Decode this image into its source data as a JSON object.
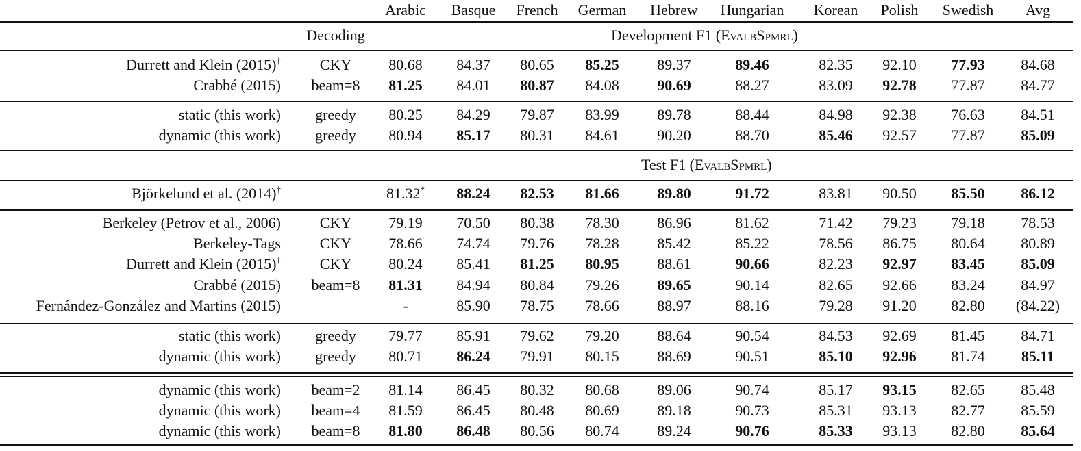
{
  "table": {
    "columns": [
      "Arabic",
      "Basque",
      "French",
      "German",
      "Hebrew",
      "Hungarian",
      "Korean",
      "Polish",
      "Swedish",
      "Avg"
    ],
    "decoding_header": "Decoding",
    "sections": {
      "dev_title": "Development F1 (",
      "dev_metric": "EvalbSpmrl",
      "dev_close": ")",
      "test_title": "Test F1 (",
      "test_metric": "EvalbSpmrl",
      "test_close": ")"
    },
    "dev_rows": [
      {
        "system": "Durrett and Klein (2015)",
        "mark": "†",
        "decoding": "CKY",
        "values": [
          "80.68",
          "84.37",
          "80.65",
          "85.25",
          "89.37",
          "89.46",
          "82.35",
          "92.10",
          "77.93",
          "84.68"
        ],
        "bold": [
          false,
          false,
          false,
          true,
          false,
          true,
          false,
          false,
          true,
          false
        ]
      },
      {
        "system": "Crabbé (2015)",
        "mark": "",
        "decoding": "beam=8",
        "values": [
          "81.25",
          "84.01",
          "80.87",
          "84.08",
          "90.69",
          "88.27",
          "83.09",
          "92.78",
          "77.87",
          "84.77"
        ],
        "bold": [
          true,
          false,
          true,
          false,
          true,
          false,
          false,
          true,
          false,
          false
        ]
      },
      {
        "system": "static (this work)",
        "mark": "",
        "decoding": "greedy",
        "values": [
          "80.25",
          "84.29",
          "79.87",
          "83.99",
          "89.78",
          "88.44",
          "84.98",
          "92.38",
          "76.63",
          "84.51"
        ],
        "bold": [
          false,
          false,
          false,
          false,
          false,
          false,
          false,
          false,
          false,
          false
        ]
      },
      {
        "system": "dynamic (this work)",
        "mark": "",
        "decoding": "greedy",
        "values": [
          "80.94",
          "85.17",
          "80.31",
          "84.61",
          "90.20",
          "88.70",
          "85.46",
          "92.57",
          "77.87",
          "85.09"
        ],
        "bold": [
          false,
          true,
          false,
          false,
          false,
          false,
          true,
          false,
          false,
          true
        ]
      }
    ],
    "test_rows": [
      {
        "system": "Björkelund et al. (2014)",
        "mark": "†",
        "decoding": "",
        "values": [
          "81.32*",
          "88.24",
          "82.53",
          "81.66",
          "89.80",
          "91.72",
          "83.81",
          "90.50",
          "85.50",
          "86.12"
        ],
        "bold": [
          false,
          true,
          true,
          true,
          true,
          true,
          false,
          false,
          true,
          true
        ]
      },
      {
        "system": "Berkeley (Petrov et al., 2006)",
        "mark": "",
        "decoding": "CKY",
        "values": [
          "79.19",
          "70.50",
          "80.38",
          "78.30",
          "86.96",
          "81.62",
          "71.42",
          "79.23",
          "79.18",
          "78.53"
        ],
        "bold": [
          false,
          false,
          false,
          false,
          false,
          false,
          false,
          false,
          false,
          false
        ]
      },
      {
        "system": "Berkeley-Tags",
        "mark": "",
        "decoding": "CKY",
        "values": [
          "78.66",
          "74.74",
          "79.76",
          "78.28",
          "85.42",
          "85.22",
          "78.56",
          "86.75",
          "80.64",
          "80.89"
        ],
        "bold": [
          false,
          false,
          false,
          false,
          false,
          false,
          false,
          false,
          false,
          false
        ]
      },
      {
        "system": "Durrett and Klein (2015)",
        "mark": "†",
        "decoding": "CKY",
        "values": [
          "80.24",
          "85.41",
          "81.25",
          "80.95",
          "88.61",
          "90.66",
          "82.23",
          "92.97",
          "83.45",
          "85.09"
        ],
        "bold": [
          false,
          false,
          true,
          true,
          false,
          true,
          false,
          true,
          true,
          true
        ]
      },
      {
        "system": "Crabbé (2015)",
        "mark": "",
        "decoding": "beam=8",
        "values": [
          "81.31",
          "84.94",
          "80.84",
          "79.26",
          "89.65",
          "90.14",
          "82.65",
          "92.66",
          "83.24",
          "84.97"
        ],
        "bold": [
          true,
          false,
          false,
          false,
          true,
          false,
          false,
          false,
          false,
          false
        ]
      },
      {
        "system": "Fernández-González and Martins (2015)",
        "mark": "",
        "decoding": "",
        "values": [
          "-",
          "85.90",
          "78.75",
          "78.66",
          "88.97",
          "88.16",
          "79.28",
          "91.20",
          "82.80",
          "(84.22)"
        ],
        "bold": [
          false,
          false,
          false,
          false,
          false,
          false,
          false,
          false,
          false,
          false
        ]
      },
      {
        "system": "static (this work)",
        "mark": "",
        "decoding": "greedy",
        "values": [
          "79.77",
          "85.91",
          "79.62",
          "79.20",
          "88.64",
          "90.54",
          "84.53",
          "92.69",
          "81.45",
          "84.71"
        ],
        "bold": [
          false,
          false,
          false,
          false,
          false,
          false,
          false,
          false,
          false,
          false
        ]
      },
      {
        "system": "dynamic (this work)",
        "mark": "",
        "decoding": "greedy",
        "values": [
          "80.71",
          "86.24",
          "79.91",
          "80.15",
          "88.69",
          "90.51",
          "85.10",
          "92.96",
          "81.74",
          "85.11"
        ],
        "bold": [
          false,
          true,
          false,
          false,
          false,
          false,
          true,
          true,
          false,
          true
        ]
      },
      {
        "system": "dynamic (this work)",
        "mark": "",
        "decoding": "beam=2",
        "values": [
          "81.14",
          "86.45",
          "80.32",
          "80.68",
          "89.06",
          "90.74",
          "85.17",
          "93.15",
          "82.65",
          "85.48"
        ],
        "bold": [
          false,
          false,
          false,
          false,
          false,
          false,
          false,
          true,
          false,
          false
        ]
      },
      {
        "system": "dynamic (this work)",
        "mark": "",
        "decoding": "beam=4",
        "values": [
          "81.59",
          "86.45",
          "80.48",
          "80.69",
          "89.18",
          "90.73",
          "85.31",
          "93.13",
          "82.77",
          "85.59"
        ],
        "bold": [
          false,
          false,
          false,
          false,
          false,
          false,
          false,
          false,
          false,
          false
        ]
      },
      {
        "system": "dynamic (this work)",
        "mark": "",
        "decoding": "beam=8",
        "values": [
          "81.80",
          "86.48",
          "80.56",
          "80.74",
          "89.24",
          "90.76",
          "85.33",
          "93.13",
          "82.80",
          "85.64"
        ],
        "bold": [
          true,
          true,
          false,
          false,
          false,
          true,
          true,
          false,
          false,
          true
        ]
      }
    ]
  }
}
